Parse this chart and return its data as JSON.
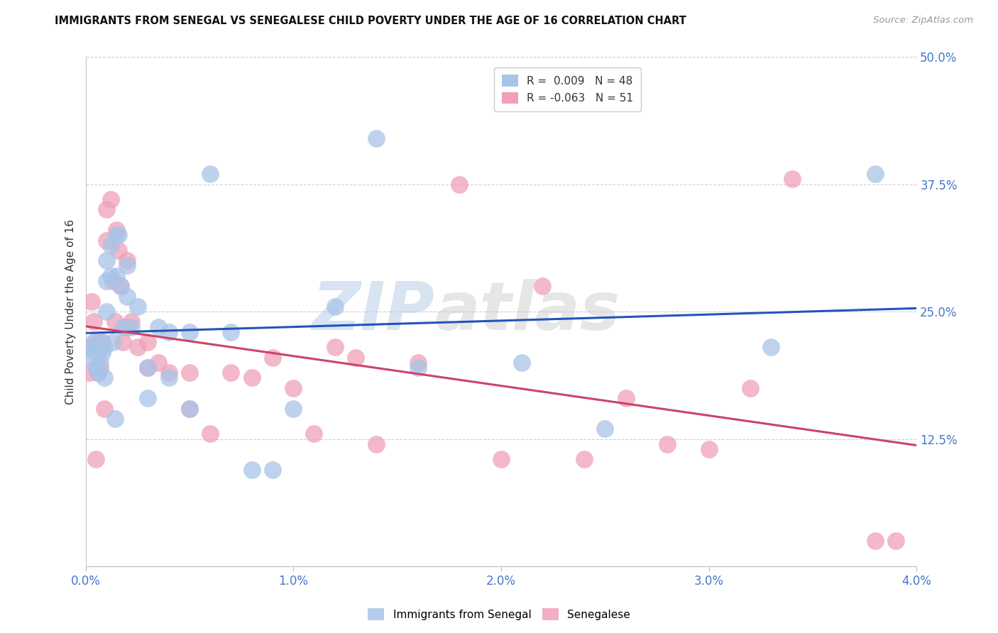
{
  "title": "IMMIGRANTS FROM SENEGAL VS SENEGALESE CHILD POVERTY UNDER THE AGE OF 16 CORRELATION CHART",
  "source": "Source: ZipAtlas.com",
  "xlabel": "",
  "ylabel": "Child Poverty Under the Age of 16",
  "legend_labels": [
    "Immigrants from Senegal",
    "Senegalese"
  ],
  "R_blue": 0.009,
  "N_blue": 48,
  "R_pink": -0.063,
  "N_pink": 51,
  "xlim": [
    0.0,
    0.04
  ],
  "ylim": [
    0.0,
    0.5
  ],
  "xticks": [
    0.0,
    0.01,
    0.02,
    0.03,
    0.04
  ],
  "xtick_labels": [
    "0.0%",
    "1.0%",
    "2.0%",
    "3.0%",
    "4.0%"
  ],
  "yticks": [
    0.0,
    0.125,
    0.25,
    0.375,
    0.5
  ],
  "ytick_labels": [
    "",
    "12.5%",
    "25.0%",
    "37.5%",
    "50.0%"
  ],
  "color_blue": "#a8c4e8",
  "color_pink": "#f0a0b8",
  "line_color_blue": "#2255bb",
  "line_color_pink": "#cc4466",
  "watermark_zip": "ZIP",
  "watermark_atlas": "atlas",
  "blue_scatter_x": [
    0.0002,
    0.0003,
    0.0004,
    0.0005,
    0.0005,
    0.0006,
    0.0006,
    0.0007,
    0.0007,
    0.0008,
    0.0008,
    0.0009,
    0.0009,
    0.001,
    0.001,
    0.001,
    0.0012,
    0.0012,
    0.0013,
    0.0014,
    0.0015,
    0.0015,
    0.0016,
    0.0017,
    0.0018,
    0.002,
    0.002,
    0.0022,
    0.0025,
    0.003,
    0.003,
    0.0035,
    0.004,
    0.004,
    0.005,
    0.005,
    0.006,
    0.007,
    0.008,
    0.009,
    0.01,
    0.012,
    0.014,
    0.016,
    0.021,
    0.025,
    0.033,
    0.038
  ],
  "blue_scatter_y": [
    0.215,
    0.205,
    0.22,
    0.195,
    0.21,
    0.19,
    0.215,
    0.2,
    0.215,
    0.21,
    0.22,
    0.215,
    0.185,
    0.3,
    0.28,
    0.25,
    0.315,
    0.285,
    0.22,
    0.145,
    0.325,
    0.285,
    0.325,
    0.275,
    0.235,
    0.295,
    0.265,
    0.235,
    0.255,
    0.195,
    0.165,
    0.235,
    0.23,
    0.185,
    0.23,
    0.155,
    0.385,
    0.23,
    0.095,
    0.095,
    0.155,
    0.255,
    0.42,
    0.195,
    0.2,
    0.135,
    0.215,
    0.385
  ],
  "pink_scatter_x": [
    0.0001,
    0.0002,
    0.0003,
    0.0004,
    0.0005,
    0.0005,
    0.0006,
    0.0007,
    0.0007,
    0.0008,
    0.0009,
    0.001,
    0.001,
    0.0012,
    0.0013,
    0.0014,
    0.0015,
    0.0016,
    0.0017,
    0.0018,
    0.002,
    0.002,
    0.0022,
    0.0025,
    0.003,
    0.003,
    0.0035,
    0.004,
    0.005,
    0.005,
    0.006,
    0.007,
    0.008,
    0.009,
    0.01,
    0.011,
    0.012,
    0.013,
    0.014,
    0.016,
    0.018,
    0.02,
    0.022,
    0.024,
    0.026,
    0.028,
    0.03,
    0.032,
    0.034,
    0.038,
    0.039
  ],
  "pink_scatter_y": [
    0.215,
    0.19,
    0.26,
    0.24,
    0.22,
    0.105,
    0.19,
    0.215,
    0.195,
    0.22,
    0.155,
    0.35,
    0.32,
    0.36,
    0.28,
    0.24,
    0.33,
    0.31,
    0.275,
    0.22,
    0.3,
    0.235,
    0.24,
    0.215,
    0.22,
    0.195,
    0.2,
    0.19,
    0.19,
    0.155,
    0.13,
    0.19,
    0.185,
    0.205,
    0.175,
    0.13,
    0.215,
    0.205,
    0.12,
    0.2,
    0.375,
    0.105,
    0.275,
    0.105,
    0.165,
    0.12,
    0.115,
    0.175,
    0.38,
    0.025,
    0.025
  ]
}
